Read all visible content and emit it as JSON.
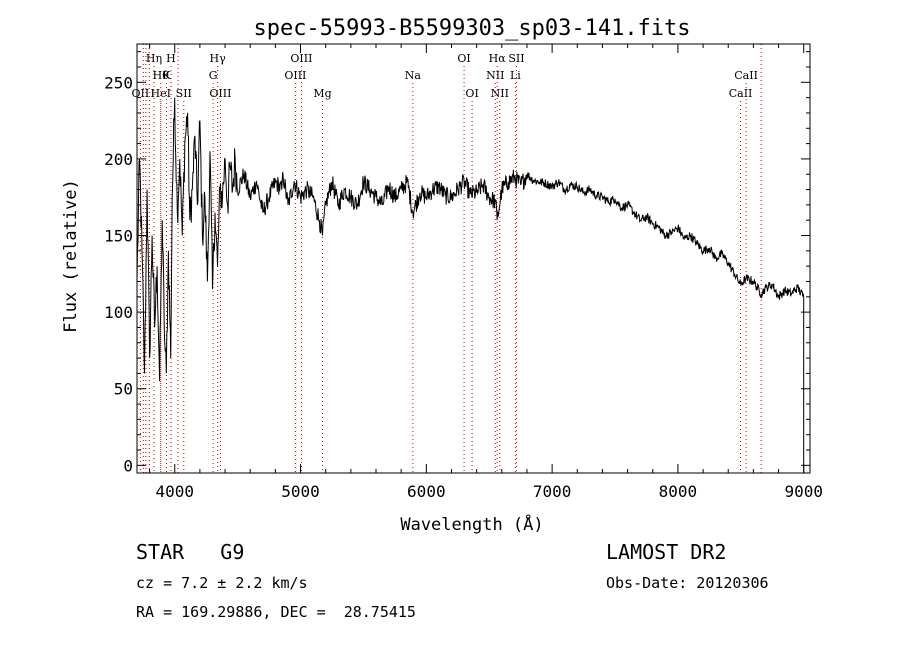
{
  "chart_data": {
    "type": "line",
    "title": "spec-55993-B5599303_sp03-141.fits",
    "xlabel": "Wavelength (Å)",
    "ylabel": "Flux (relative)",
    "xlim": [
      3700,
      9050
    ],
    "ylim": [
      -5,
      275
    ],
    "x_ticks": [
      4000,
      5000,
      6000,
      7000,
      8000,
      9000
    ],
    "y_ticks": [
      0,
      50,
      100,
      150,
      200,
      250
    ],
    "series": [
      {
        "color": "#000000",
        "x": [
          3700,
          3720,
          3740,
          3760,
          3780,
          3800,
          3820,
          3840,
          3860,
          3880,
          3900,
          3920,
          3933,
          3950,
          3968,
          3980,
          4000,
          4020,
          4040,
          4060,
          4080,
          4102,
          4120,
          4140,
          4160,
          4180,
          4200,
          4220,
          4240,
          4260,
          4280,
          4300,
          4320,
          4340,
          4360,
          4380,
          4400,
          4420,
          4440,
          4460,
          4480,
          4500,
          4550,
          4600,
          4650,
          4700,
          4750,
          4800,
          4850,
          4861,
          4900,
          4950,
          5000,
          5050,
          5100,
          5150,
          5175,
          5200,
          5250,
          5300,
          5350,
          5400,
          5450,
          5500,
          5550,
          5600,
          5650,
          5700,
          5750,
          5800,
          5850,
          5893,
          5950,
          6000,
          6050,
          6100,
          6150,
          6200,
          6250,
          6300,
          6350,
          6400,
          6450,
          6500,
          6550,
          6563,
          6600,
          6650,
          6700,
          6750,
          6800,
          6850,
          6900,
          6950,
          7000,
          7050,
          7100,
          7150,
          7200,
          7250,
          7300,
          7350,
          7400,
          7450,
          7500,
          7550,
          7600,
          7650,
          7700,
          7750,
          7800,
          7850,
          7900,
          7950,
          8000,
          8050,
          8100,
          8150,
          8200,
          8250,
          8300,
          8350,
          8400,
          8450,
          8498,
          8542,
          8600,
          8662,
          8700,
          8750,
          8800,
          8850,
          8900,
          8950,
          9000
        ],
        "y": [
          120,
          200,
          140,
          60,
          180,
          70,
          150,
          90,
          130,
          55,
          160,
          80,
          60,
          140,
          70,
          175,
          240,
          165,
          200,
          150,
          210,
          230,
          160,
          180,
          215,
          170,
          225,
          150,
          175,
          120,
          205,
          115,
          165,
          130,
          180,
          175,
          200,
          170,
          195,
          180,
          200,
          180,
          190,
          175,
          185,
          165,
          175,
          185,
          180,
          190,
          170,
          185,
          175,
          180,
          175,
          160,
          150,
          170,
          185,
          170,
          180,
          175,
          170,
          185,
          180,
          175,
          170,
          182,
          175,
          180,
          185,
          165,
          178,
          175,
          180,
          182,
          176,
          175,
          180,
          185,
          177,
          178,
          183,
          175,
          172,
          160,
          180,
          185,
          188,
          183,
          190,
          186,
          185,
          184,
          182,
          185,
          180,
          183,
          182,
          178,
          180,
          176,
          175,
          172,
          174,
          168,
          170,
          165,
          160,
          162,
          158,
          155,
          150,
          152,
          155,
          148,
          150,
          145,
          140,
          142,
          135,
          138,
          132,
          125,
          118,
          122,
          120,
          112,
          116,
          118,
          110,
          114,
          112,
          116,
          110
        ]
      }
    ],
    "lines": [
      {
        "wl": 3727,
        "label": "OII",
        "row": 3
      },
      {
        "wl": 3750,
        "label": "",
        "row": 0
      },
      {
        "wl": 3771,
        "label": "",
        "row": 0
      },
      {
        "wl": 3798,
        "label": "",
        "row": 0
      },
      {
        "wl": 3835,
        "label": "Hη",
        "row": 1
      },
      {
        "wl": 3889,
        "label": "Hθ",
        "row": 2
      },
      {
        "wl": 3889,
        "label": "HeI",
        "row": 3
      },
      {
        "wl": 3934,
        "label": "K",
        "row": 2
      },
      {
        "wl": 3970,
        "label": "H",
        "row": 1
      },
      {
        "wl": 4026,
        "label": "",
        "row": 0
      },
      {
        "wl": 4072,
        "label": "SII",
        "row": 3
      },
      {
        "wl": 4305,
        "label": "G",
        "row": 2
      },
      {
        "wl": 4341,
        "label": "Hγ",
        "row": 1
      },
      {
        "wl": 4363,
        "label": "OIII",
        "row": 3
      },
      {
        "wl": 4959,
        "label": "OIII",
        "row": 2
      },
      {
        "wl": 5007,
        "label": "OIII",
        "row": 1
      },
      {
        "wl": 5175,
        "label": "Mg",
        "row": 3
      },
      {
        "wl": 5893,
        "label": "Na",
        "row": 2
      },
      {
        "wl": 6300,
        "label": "OI",
        "row": 1
      },
      {
        "wl": 6364,
        "label": "OI",
        "row": 3
      },
      {
        "wl": 6548,
        "label": "NII",
        "row": 2
      },
      {
        "wl": 6563,
        "label": "Hα",
        "row": 1
      },
      {
        "wl": 6584,
        "label": "NII",
        "row": 3
      },
      {
        "wl": 6708,
        "label": "Li",
        "row": 2
      },
      {
        "wl": 6717,
        "label": "SII",
        "row": 1
      },
      {
        "wl": 8498,
        "label": "CaII",
        "row": 3
      },
      {
        "wl": 8542,
        "label": "CaII",
        "row": 2
      },
      {
        "wl": 8662,
        "label": "",
        "row": 0
      }
    ],
    "line_color": "#cc0000"
  },
  "info": {
    "class_label": "STAR   G9",
    "survey": "LAMOST DR2",
    "cz": "cz = 7.2 ± 2.2 km/s",
    "obs_date": "Obs-Date: 20120306",
    "coords": "RA = 169.29886, DEC =  28.75415"
  }
}
